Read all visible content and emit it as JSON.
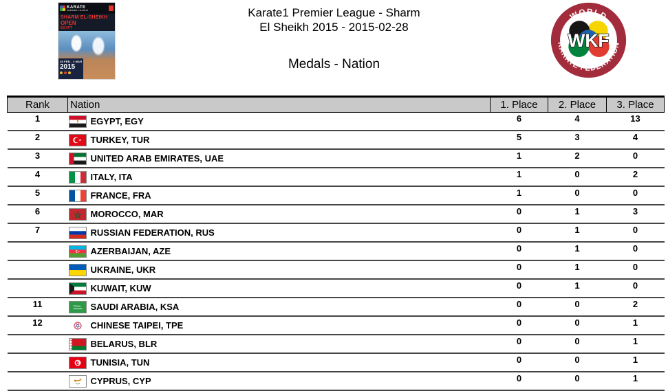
{
  "header": {
    "title_line1": "Karate1 Premier League - Sharm",
    "title_line2": "El Sheikh 2015 - 2015-02-28",
    "section_title": "Medals - Nation"
  },
  "poster": {
    "league": "KARATE",
    "league_sub": "PREMIER LEAGUE",
    "line1": "SHARM EL-SHEIKH",
    "line2": "OPEN",
    "line3": "EGYPT",
    "date": "28 FEB - 1 MAR",
    "year": "2015"
  },
  "wkf": {
    "top": "WORLD",
    "center": "WKF",
    "bottom": "KARATE FEDERATION"
  },
  "table": {
    "columns": [
      {
        "key": "rank",
        "label": "Rank"
      },
      {
        "key": "nation",
        "label": "Nation"
      },
      {
        "key": "p1",
        "label": "1. Place"
      },
      {
        "key": "p2",
        "label": "2. Place"
      },
      {
        "key": "p3",
        "label": "3. Place"
      }
    ],
    "rows": [
      {
        "rank": "1",
        "flag": "egy",
        "nation": "EGYPT, EGY",
        "p1": "6",
        "p2": "4",
        "p3": "13"
      },
      {
        "rank": "2",
        "flag": "tur",
        "nation": "TURKEY, TUR",
        "p1": "5",
        "p2": "3",
        "p3": "4"
      },
      {
        "rank": "3",
        "flag": "uae",
        "nation": "UNITED ARAB EMIRATES, UAE",
        "p1": "1",
        "p2": "2",
        "p3": "0"
      },
      {
        "rank": "4",
        "flag": "ita",
        "nation": "ITALY, ITA",
        "p1": "1",
        "p2": "0",
        "p3": "2"
      },
      {
        "rank": "5",
        "flag": "fra",
        "nation": "FRANCE, FRA",
        "p1": "1",
        "p2": "0",
        "p3": "0"
      },
      {
        "rank": "6",
        "flag": "mar",
        "nation": "MOROCCO, MAR",
        "p1": "0",
        "p2": "1",
        "p3": "3"
      },
      {
        "rank": "7",
        "flag": "rus",
        "nation": "RUSSIAN FEDERATION, RUS",
        "p1": "0",
        "p2": "1",
        "p3": "0"
      },
      {
        "rank": "",
        "flag": "aze",
        "nation": "AZERBAIJAN, AZE",
        "p1": "0",
        "p2": "1",
        "p3": "0"
      },
      {
        "rank": "",
        "flag": "ukr",
        "nation": "UKRAINE, UKR",
        "p1": "0",
        "p2": "1",
        "p3": "0"
      },
      {
        "rank": "",
        "flag": "kuw",
        "nation": "KUWAIT, KUW",
        "p1": "0",
        "p2": "1",
        "p3": "0"
      },
      {
        "rank": "11",
        "flag": "ksa",
        "nation": "SAUDI ARABIA, KSA",
        "p1": "0",
        "p2": "0",
        "p3": "2"
      },
      {
        "rank": "12",
        "flag": "tpe",
        "nation": "CHINESE TAIPEI, TPE",
        "p1": "0",
        "p2": "0",
        "p3": "1"
      },
      {
        "rank": "",
        "flag": "blr",
        "nation": "BELARUS, BLR",
        "p1": "0",
        "p2": "0",
        "p3": "1"
      },
      {
        "rank": "",
        "flag": "tun",
        "nation": "TUNISIA, TUN",
        "p1": "0",
        "p2": "0",
        "p3": "1"
      },
      {
        "rank": "",
        "flag": "cyp",
        "nation": "CYPRUS, CYP",
        "p1": "0",
        "p2": "0",
        "p3": "1"
      }
    ]
  },
  "colors": {
    "header_bg": "#c9c9c9",
    "table_border": "#000000",
    "row_line": "#454545",
    "wkf_ring": "#a22c3c"
  }
}
